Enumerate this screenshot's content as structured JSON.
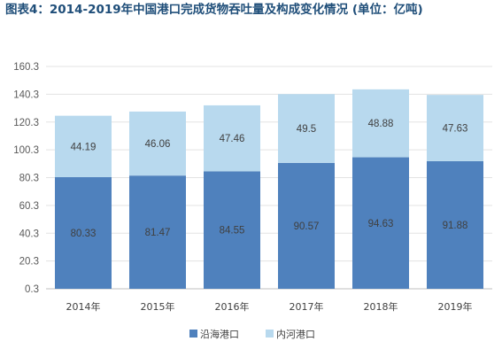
{
  "title": "图表4：2014-2019年中国港口完成货物吞吐量及构成变化情况 (单位：亿吨)",
  "colors": {
    "coastal": "#4f81bd",
    "inland": "#b8d9ee",
    "title": "#1f4e79",
    "axis": "#bfbfbf"
  },
  "chart_data": {
    "type": "bar",
    "stacked": true,
    "categories": [
      "2014年",
      "2015年",
      "2016年",
      "2017年",
      "2018年",
      "2019年"
    ],
    "series": [
      {
        "name": "沿海港口",
        "values": [
          80.33,
          81.47,
          84.55,
          90.57,
          94.63,
          91.88
        ]
      },
      {
        "name": "内河港口",
        "values": [
          44.19,
          46.06,
          47.46,
          49.5,
          48.88,
          47.63
        ]
      }
    ],
    "series_labels": [
      [
        "80.33",
        "81.47",
        "84.55",
        "90.57",
        "94.63",
        "91.88"
      ],
      [
        "44.19",
        "46.06",
        "47.46",
        "49.5",
        "48.88",
        "47.63"
      ]
    ],
    "yticks": [
      "0.3",
      "20.3",
      "40.3",
      "60.3",
      "80.3",
      "100.3",
      "120.3",
      "140.3",
      "160.3"
    ],
    "ylim": [
      0.3,
      160.3
    ],
    "xlabel": "",
    "ylabel": "",
    "grid": true,
    "legend": "bottom"
  }
}
